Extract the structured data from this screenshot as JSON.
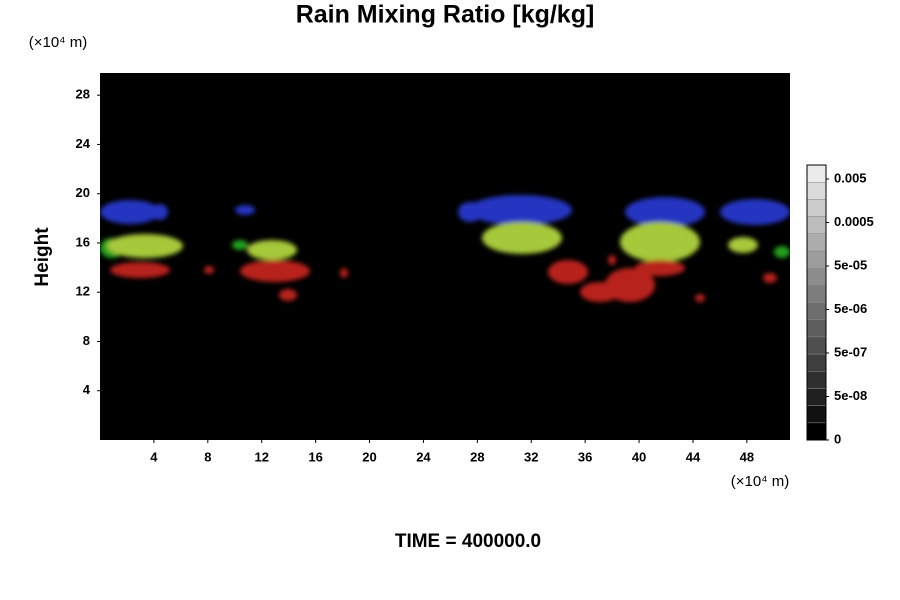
{
  "chart_data": {
    "type": "volume",
    "title": "Rain Mixing Ratio [kg/kg]",
    "y_label": "Height",
    "y_unit": "(×10⁴ m)",
    "x_unit": "(×10⁴ m)",
    "annotation": "TIME = 400000.0",
    "xlim": [
      0,
      51.2
    ],
    "xticks": [
      4,
      8,
      12,
      16,
      20,
      24,
      28,
      32,
      36,
      40,
      44,
      48
    ],
    "ylim": [
      0,
      29.8
    ],
    "yticks": [
      4,
      8,
      12,
      16,
      20,
      24,
      28
    ],
    "clim": [
      5e-09,
      0.0105
    ],
    "clog": true,
    "cticks": [
      0.005,
      0.0005,
      {
        "value": 5e-05,
        "label": "5e-05"
      },
      {
        "value": 5e-06,
        "label": "5e-06"
      },
      {
        "value": 5e-07,
        "label": "5e-07"
      },
      {
        "value": 5e-08,
        "label": "5e-08"
      },
      0
    ],
    "background": "#000000"
  }
}
